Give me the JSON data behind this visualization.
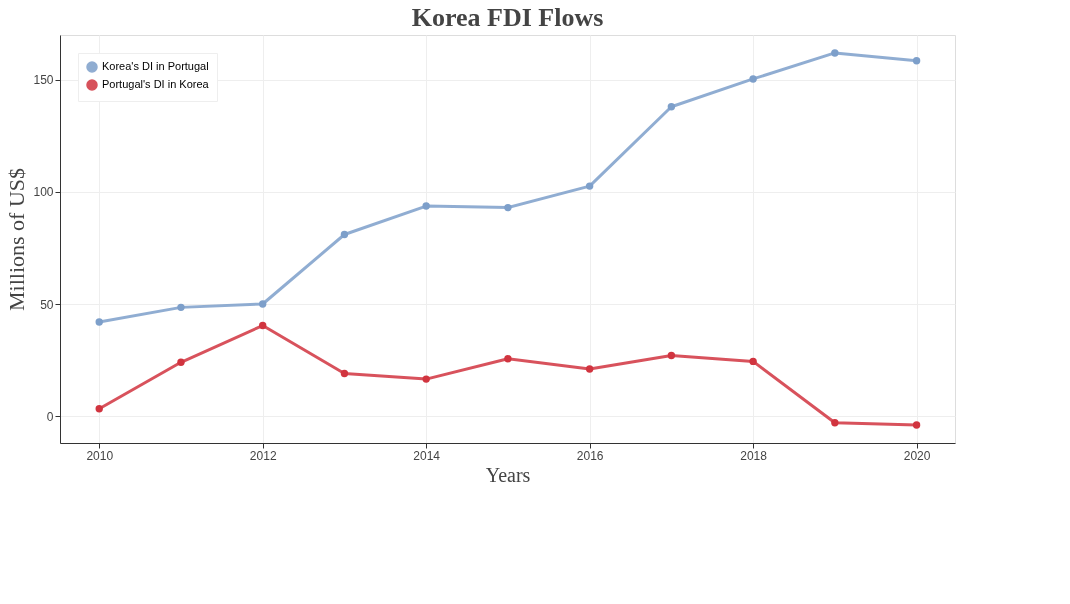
{
  "chart_data": {
    "type": "line",
    "title": "Korea FDI Flows",
    "xlabel": "Years",
    "ylabel": "Millions of US$",
    "x": [
      2010,
      2011,
      2012,
      2013,
      2014,
      2015,
      2016,
      2017,
      2018,
      2019,
      2020
    ],
    "series": [
      {
        "name": "Korea's DI in Portugal",
        "color": "#7d9fca",
        "values": [
          42,
          48.5,
          50,
          81,
          93.7,
          93,
          102.6,
          138,
          150.4,
          162,
          158.5
        ]
      },
      {
        "name": "Portugal's DI in Korea",
        "color": "#d1343f",
        "values": [
          3.3,
          24,
          40.4,
          19,
          16.5,
          25.6,
          21,
          27,
          24.4,
          -3,
          -4
        ]
      }
    ],
    "xlim": [
      2009.52,
      2020.47
    ],
    "xticks": [
      2010,
      2012,
      2014,
      2016,
      2018,
      2020
    ],
    "ylim": [
      -12,
      170
    ],
    "yticks": [
      0,
      50,
      100,
      150
    ],
    "grid": true,
    "legend": "top left",
    "marker": "circle",
    "line_style": "solid"
  }
}
